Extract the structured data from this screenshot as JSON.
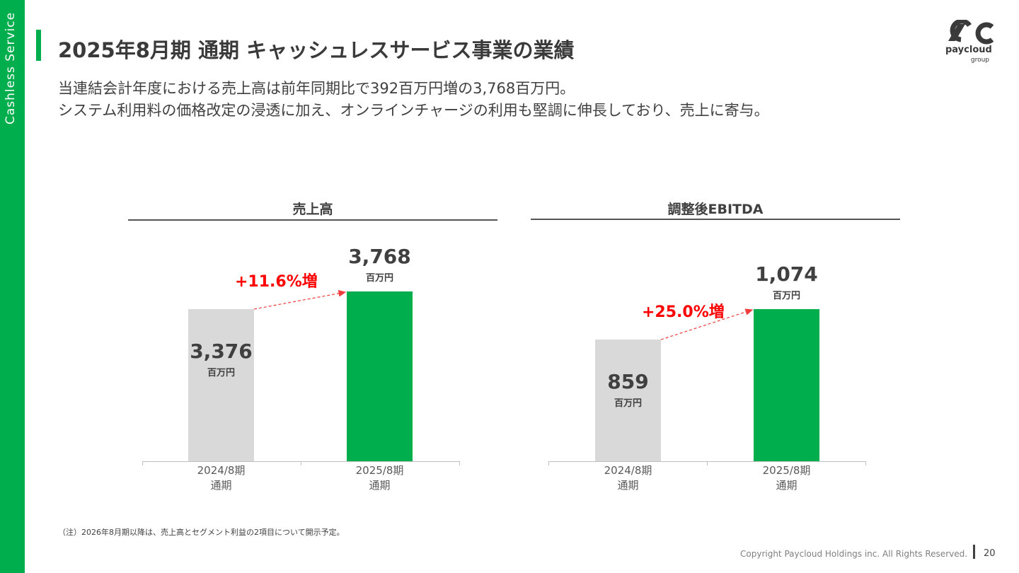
{
  "side_label": "Cashless Service",
  "title": "2025年8月期 通期 キャッシュレスサービス事業の業績",
  "subtitle": {
    "line1": "当連結会計年度における売上高は前年同期比で392百万円増の3,768百万円。",
    "line2": "システム利用料の価格改定の浸透に加え、オンラインチャージの利用も堅調に伸長しており、売上に寄与。"
  },
  "logo": {
    "name": "paycloud",
    "sub": "group",
    "icon": "paycloud-logo-icon",
    "color": "#3a3a3a"
  },
  "colors": {
    "accent": "#00ae4d",
    "prev_bar": "#d9d9d9",
    "growth": "#ff0000"
  },
  "chart_data": [
    {
      "type": "bar",
      "title": "売上高",
      "categories": [
        "2024/8期\n通期",
        "2025/8期\n通期"
      ],
      "category_lines": [
        [
          "2024/8期",
          "通期"
        ],
        [
          "2025/8期",
          "通期"
        ]
      ],
      "values": [
        3376,
        3768
      ],
      "value_labels": [
        "3,376",
        "3,768"
      ],
      "unit": "百万円",
      "growth_label": "+11.6%増",
      "ylim": [
        0,
        4000
      ]
    },
    {
      "type": "bar",
      "title": "調整後EBITDA",
      "categories": [
        "2024/8期\n通期",
        "2025/8期\n通期"
      ],
      "category_lines": [
        [
          "2024/8期",
          "通期"
        ],
        [
          "2025/8期",
          "通期"
        ]
      ],
      "values": [
        859,
        1074
      ],
      "value_labels": [
        "859",
        "1,074"
      ],
      "unit": "百万円",
      "growth_label": "+25.0%増",
      "ylim": [
        0,
        1250
      ]
    }
  ],
  "footnote": "（注）2026年8月期以降は、売上高とセグメント利益の2項目について開示予定。",
  "copyright": "Copyright Paycloud Holdings inc. All Rights Reserved.",
  "page_number": "20"
}
